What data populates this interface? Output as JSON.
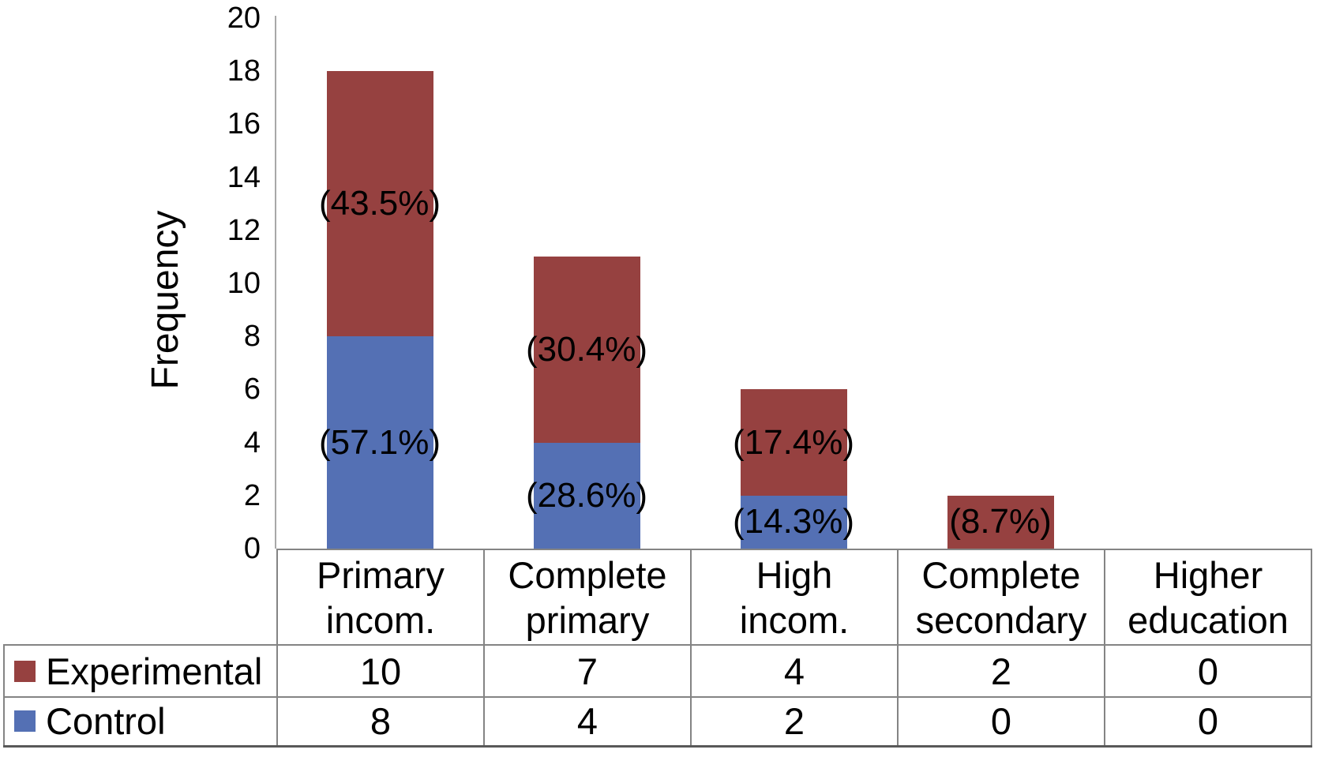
{
  "chart_data": {
    "type": "bar",
    "stacked": true,
    "title": "",
    "xlabel": "",
    "ylabel": "Frequency",
    "ylim": [
      0,
      20
    ],
    "ytick_step": 2,
    "ytick_labels": [
      "0",
      "2",
      "4",
      "6",
      "8",
      "10",
      "12",
      "14",
      "16",
      "18",
      "20"
    ],
    "grid": false,
    "legend_position": "table-rows-left",
    "categories": [
      "Primary\nincom.",
      "Complete\nprimary",
      "High\nincom.",
      "Complete\nsecondary",
      "Higher\neducation"
    ],
    "series": [
      {
        "name": "Control",
        "color": "#5470b4",
        "values": [
          8,
          4,
          2,
          0,
          0
        ],
        "segment_labels": [
          "(57.1%)",
          "(28.6%)",
          "(14.3%)",
          "",
          ""
        ]
      },
      {
        "name": "Experimental",
        "color": "#964140",
        "values": [
          10,
          7,
          4,
          2,
          0
        ],
        "segment_labels": [
          "(43.5%)",
          "(30.4%)",
          "(17.4%)",
          "(8.7%)",
          ""
        ]
      }
    ]
  }
}
